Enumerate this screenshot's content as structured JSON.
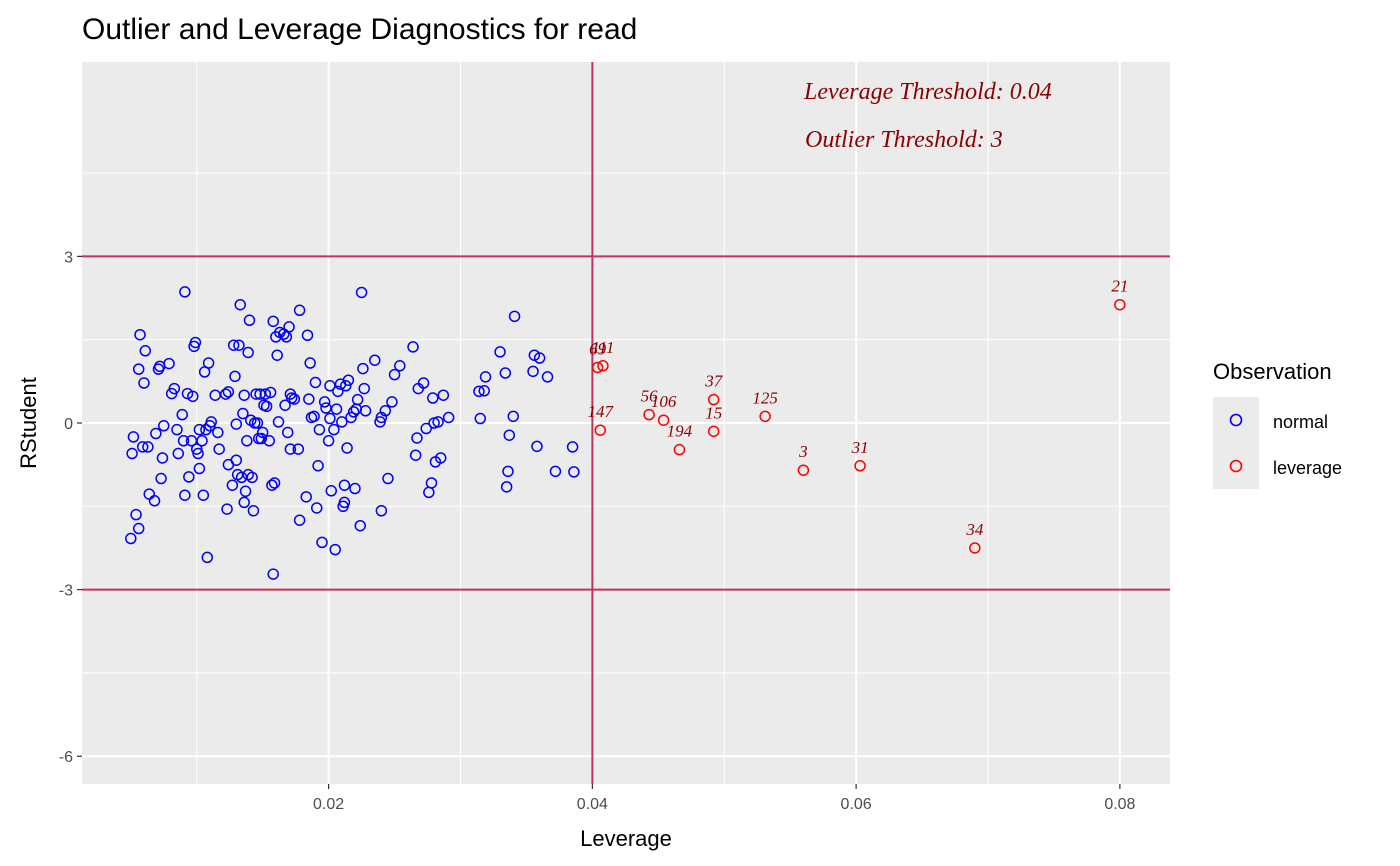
{
  "chart_data": {
    "type": "scatter",
    "title": "Outlier and Leverage Diagnostics for read",
    "xlabel": "Leverage",
    "ylabel": "RStudent",
    "xlim": [
      0.0013,
      0.0838
    ],
    "ylim": [
      -6.5,
      6.5
    ],
    "x_ticks": [
      0.02,
      0.04,
      0.06,
      0.08
    ],
    "x_tick_labels": [
      "0.02",
      "0.04",
      "0.06",
      "0.08"
    ],
    "y_ticks": [
      -6,
      -3,
      0,
      3
    ],
    "y_tick_labels": [
      "-6",
      "-3",
      "0",
      "3"
    ],
    "grid": true,
    "legend": {
      "title": "Observation",
      "placement": "right",
      "entries": [
        "normal",
        "leverage"
      ]
    },
    "colors": {
      "panel_bg": "#ebebeb",
      "grid": "#ffffff",
      "threshold_line": "#c0325a",
      "normal": "#0000ff",
      "leverage": "#ff0000",
      "annotation": "#8b0000"
    },
    "thresholds": {
      "leverage": 0.04,
      "outlier_upper": 3,
      "outlier_lower": -3
    },
    "annotations": [
      "Leverage Threshold: 0.04",
      "Outlier Threshold: 3"
    ],
    "series": [
      {
        "name": "normal",
        "points": [
          [
            0.0052,
            -0.25
          ],
          [
            0.0051,
            -0.55
          ],
          [
            0.005,
            -2.08
          ],
          [
            0.0054,
            -1.65
          ],
          [
            0.0056,
            -1.9
          ],
          [
            0.0056,
            0.97
          ],
          [
            0.0057,
            1.59
          ],
          [
            0.0059,
            -0.43
          ],
          [
            0.006,
            0.72
          ],
          [
            0.0061,
            1.3
          ],
          [
            0.0063,
            -0.43
          ],
          [
            0.0064,
            -1.28
          ],
          [
            0.0068,
            -1.4
          ],
          [
            0.0069,
            -0.19
          ],
          [
            0.0071,
            0.97
          ],
          [
            0.0072,
            1.02
          ],
          [
            0.0073,
            -1.0
          ],
          [
            0.0074,
            -0.63
          ],
          [
            0.0075,
            -0.05
          ],
          [
            0.0079,
            1.07
          ],
          [
            0.0081,
            0.53
          ],
          [
            0.0083,
            0.62
          ],
          [
            0.0085,
            -0.12
          ],
          [
            0.0086,
            -0.55
          ],
          [
            0.0089,
            0.15
          ],
          [
            0.009,
            -0.32
          ],
          [
            0.0091,
            -1.3
          ],
          [
            0.0091,
            2.36
          ],
          [
            0.0093,
            0.53
          ],
          [
            0.0094,
            -0.97
          ],
          [
            0.0096,
            -0.32
          ],
          [
            0.0097,
            0.48
          ],
          [
            0.0098,
            1.38
          ],
          [
            0.0099,
            1.45
          ],
          [
            0.01,
            -0.47
          ],
          [
            0.0101,
            -0.55
          ],
          [
            0.0102,
            -0.12
          ],
          [
            0.0102,
            -0.82
          ],
          [
            0.0104,
            -0.32
          ],
          [
            0.0105,
            -1.3
          ],
          [
            0.0106,
            0.92
          ],
          [
            0.0107,
            -0.12
          ],
          [
            0.0108,
            -2.42
          ],
          [
            0.0109,
            1.08
          ],
          [
            0.011,
            -0.05
          ],
          [
            0.0111,
            0.02
          ],
          [
            0.0114,
            0.5
          ],
          [
            0.0116,
            -0.17
          ],
          [
            0.0117,
            -0.47
          ],
          [
            0.0122,
            0.52
          ],
          [
            0.0123,
            -1.55
          ],
          [
            0.0124,
            0.56
          ],
          [
            0.0124,
            -0.75
          ],
          [
            0.0127,
            -1.12
          ],
          [
            0.0128,
            1.4
          ],
          [
            0.0129,
            0.84
          ],
          [
            0.013,
            -0.67
          ],
          [
            0.013,
            -0.02
          ],
          [
            0.0131,
            -0.93
          ],
          [
            0.0132,
            1.4
          ],
          [
            0.0133,
            2.13
          ],
          [
            0.0134,
            -0.98
          ],
          [
            0.0135,
            0.17
          ],
          [
            0.0136,
            -1.43
          ],
          [
            0.0136,
            0.5
          ],
          [
            0.0137,
            -1.23
          ],
          [
            0.0138,
            -0.32
          ],
          [
            0.0139,
            1.27
          ],
          [
            0.0139,
            -0.93
          ],
          [
            0.014,
            1.85
          ],
          [
            0.0141,
            0.05
          ],
          [
            0.0142,
            -0.98
          ],
          [
            0.0143,
            -1.58
          ],
          [
            0.0144,
            0.0
          ],
          [
            0.0145,
            0.52
          ],
          [
            0.0146,
            0.0
          ],
          [
            0.0147,
            -0.28
          ],
          [
            0.0148,
            0.52
          ],
          [
            0.0149,
            -0.28
          ],
          [
            0.015,
            -0.17
          ],
          [
            0.0151,
            0.32
          ],
          [
            0.0152,
            0.52
          ],
          [
            0.0153,
            0.3
          ],
          [
            0.0155,
            -0.32
          ],
          [
            0.0156,
            0.55
          ],
          [
            0.0157,
            -1.12
          ],
          [
            0.0158,
            -2.72
          ],
          [
            0.0158,
            1.83
          ],
          [
            0.0159,
            -1.08
          ],
          [
            0.016,
            1.55
          ],
          [
            0.0161,
            1.22
          ],
          [
            0.0162,
            0.02
          ],
          [
            0.0163,
            1.63
          ],
          [
            0.0166,
            1.6
          ],
          [
            0.0167,
            0.32
          ],
          [
            0.0168,
            1.55
          ],
          [
            0.0169,
            -0.17
          ],
          [
            0.017,
            1.73
          ],
          [
            0.0171,
            -0.47
          ],
          [
            0.0171,
            0.52
          ],
          [
            0.0172,
            0.45
          ],
          [
            0.0174,
            0.43
          ],
          [
            0.0177,
            -0.47
          ],
          [
            0.0178,
            -1.75
          ],
          [
            0.0178,
            2.03
          ],
          [
            0.0183,
            -1.33
          ],
          [
            0.0184,
            1.58
          ],
          [
            0.0185,
            0.43
          ],
          [
            0.0186,
            1.08
          ],
          [
            0.0187,
            0.1
          ],
          [
            0.0189,
            0.12
          ],
          [
            0.019,
            0.73
          ],
          [
            0.0191,
            -1.53
          ],
          [
            0.0192,
            -0.77
          ],
          [
            0.0193,
            -0.12
          ],
          [
            0.0195,
            -2.15
          ],
          [
            0.0197,
            0.38
          ],
          [
            0.0198,
            0.27
          ],
          [
            0.02,
            -0.32
          ],
          [
            0.0201,
            0.08
          ],
          [
            0.0201,
            0.67
          ],
          [
            0.0202,
            -1.22
          ],
          [
            0.0204,
            -0.12
          ],
          [
            0.0205,
            -2.28
          ],
          [
            0.0206,
            0.25
          ],
          [
            0.0207,
            0.57
          ],
          [
            0.0209,
            0.7
          ],
          [
            0.021,
            0.02
          ],
          [
            0.0211,
            -1.5
          ],
          [
            0.0212,
            -1.12
          ],
          [
            0.0212,
            -1.43
          ],
          [
            0.0213,
            0.67
          ],
          [
            0.0214,
            -0.45
          ],
          [
            0.0215,
            0.77
          ],
          [
            0.0217,
            0.1
          ],
          [
            0.0219,
            0.2
          ],
          [
            0.022,
            -1.18
          ],
          [
            0.0221,
            0.25
          ],
          [
            0.0222,
            0.42
          ],
          [
            0.0224,
            -1.85
          ],
          [
            0.0225,
            2.35
          ],
          [
            0.0226,
            0.98
          ],
          [
            0.0227,
            0.62
          ],
          [
            0.0228,
            0.22
          ],
          [
            0.0235,
            1.13
          ],
          [
            0.0239,
            0.02
          ],
          [
            0.024,
            -1.58
          ],
          [
            0.024,
            0.1
          ],
          [
            0.0243,
            0.22
          ],
          [
            0.0245,
            -1.0
          ],
          [
            0.0248,
            0.38
          ],
          [
            0.025,
            0.87
          ],
          [
            0.0254,
            1.03
          ],
          [
            0.0264,
            1.37
          ],
          [
            0.0266,
            -0.58
          ],
          [
            0.0267,
            -0.27
          ],
          [
            0.0268,
            0.62
          ],
          [
            0.0272,
            0.72
          ],
          [
            0.0274,
            -0.1
          ],
          [
            0.0276,
            -1.25
          ],
          [
            0.0278,
            -1.08
          ],
          [
            0.0279,
            0.45
          ],
          [
            0.028,
            0.0
          ],
          [
            0.0281,
            -0.7
          ],
          [
            0.0283,
            0.02
          ],
          [
            0.0285,
            -0.63
          ],
          [
            0.0287,
            0.5
          ],
          [
            0.0291,
            0.1
          ],
          [
            0.0314,
            0.57
          ],
          [
            0.0315,
            0.08
          ],
          [
            0.0318,
            0.58
          ],
          [
            0.0319,
            0.83
          ],
          [
            0.033,
            1.28
          ],
          [
            0.0334,
            0.9
          ],
          [
            0.0335,
            -1.15
          ],
          [
            0.0336,
            -0.87
          ],
          [
            0.0337,
            -0.22
          ],
          [
            0.034,
            0.12
          ],
          [
            0.0341,
            1.92
          ],
          [
            0.0355,
            0.93
          ],
          [
            0.0356,
            1.22
          ],
          [
            0.0358,
            -0.42
          ],
          [
            0.036,
            1.17
          ],
          [
            0.0366,
            0.83
          ],
          [
            0.0372,
            -0.87
          ],
          [
            0.0385,
            -0.43
          ],
          [
            0.0386,
            -0.88
          ]
        ]
      },
      {
        "name": "leverage",
        "points": [
          {
            "x": 0.0404,
            "y": 1.0,
            "label": "69"
          },
          {
            "x": 0.0408,
            "y": 1.03,
            "label": "111"
          },
          {
            "x": 0.0406,
            "y": -0.13,
            "label": "147"
          },
          {
            "x": 0.0443,
            "y": 0.15,
            "label": "56"
          },
          {
            "x": 0.0454,
            "y": 0.05,
            "label": "106"
          },
          {
            "x": 0.0466,
            "y": -0.48,
            "label": "194"
          },
          {
            "x": 0.0492,
            "y": 0.42,
            "label": "37"
          },
          {
            "x": 0.0492,
            "y": -0.15,
            "label": "15"
          },
          {
            "x": 0.0531,
            "y": 0.12,
            "label": "125"
          },
          {
            "x": 0.056,
            "y": -0.85,
            "label": "3"
          },
          {
            "x": 0.0603,
            "y": -0.77,
            "label": "31"
          },
          {
            "x": 0.069,
            "y": -2.25,
            "label": "34"
          },
          {
            "x": 0.08,
            "y": 2.13,
            "label": "21"
          }
        ]
      }
    ]
  }
}
